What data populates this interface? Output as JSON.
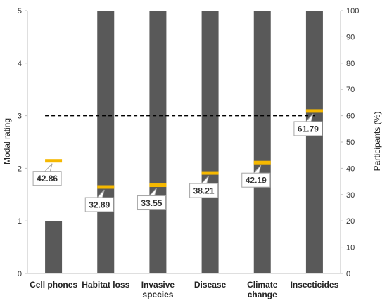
{
  "chart_data": {
    "type": "bar",
    "categories": [
      [
        "Cell phones"
      ],
      [
        "Habitat loss"
      ],
      [
        "Invasive",
        "species"
      ],
      [
        "Disease"
      ],
      [
        "Climate",
        "change"
      ],
      [
        "Insecticides"
      ]
    ],
    "modal_rating": [
      1,
      5,
      5,
      5,
      5,
      5
    ],
    "participants_pct": [
      42.86,
      32.89,
      33.55,
      38.21,
      42.19,
      61.79
    ],
    "participants_labels": [
      "42.86",
      "32.89",
      "33.55",
      "38.21",
      "42.19",
      "61.79"
    ],
    "reference_line_rating": 3,
    "ylabel": "Modal rating",
    "y2label": "Participants (%)",
    "ylim": [
      0,
      5
    ],
    "y2lim": [
      0,
      100
    ],
    "yticks": [
      "0",
      "1",
      "2",
      "3",
      "4",
      "5"
    ],
    "y2ticks": [
      "0",
      "10",
      "20",
      "30",
      "40",
      "50",
      "60",
      "70",
      "80",
      "90",
      "100"
    ],
    "grid": false,
    "colors": {
      "bar": "#595959",
      "marker": "#f5b800",
      "axis": "#bfbfbf",
      "reference_line": "#000000",
      "label_border": "#a6a6a6"
    }
  }
}
